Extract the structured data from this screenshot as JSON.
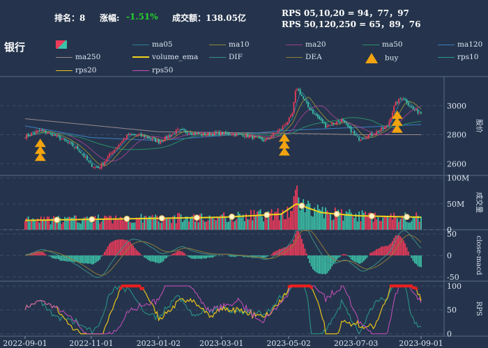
{
  "header": {
    "rank_label": "排名：8",
    "change_label": "涨幅:",
    "change_value": "-1.51%",
    "turnover_label": "成交额：138.05亿",
    "rps_line1": "RPS 05,10,20 = 94，77，97",
    "rps_line2": "RPS 50,120,250 = 65，89，76"
  },
  "title": "银行",
  "colors": {
    "background": "#25344c",
    "up": "#ef3b5a",
    "down": "#3cc3a8",
    "negative_change": "#25d12b",
    "volume_ema": "#f2d31c",
    "buy_marker": "#f2a30f"
  },
  "legend": [
    {
      "label": "",
      "color": "#ef3b5a",
      "kind": "candle-icon"
    },
    {
      "label": "ma05",
      "color": "#2f7f9b"
    },
    {
      "label": "ma10",
      "color": "#8e8a3a"
    },
    {
      "label": "ma20",
      "color": "#9b3f8f"
    },
    {
      "label": "ma50",
      "color": "#2c8f6b"
    },
    {
      "label": "ma120",
      "color": "#3c7fc2"
    },
    {
      "label": "ma250",
      "color": "#9a8a8f"
    },
    {
      "label": "volume_ema",
      "color": "#f2d31c"
    },
    {
      "label": "DIF",
      "color": "#3a8f86"
    },
    {
      "label": "DEA",
      "color": "#8e7a3a"
    },
    {
      "label": "buy",
      "color": "#f2a30f",
      "kind": "triangle-icon"
    },
    {
      "label": "rps10",
      "color": "#2a9a8a"
    },
    {
      "label": "rps20",
      "color": "#e9c21a"
    },
    {
      "label": "rps50",
      "color": "#cc4fc0"
    }
  ],
  "chart_data": {
    "type": "candlestick",
    "x_dates": [
      "2022-09-01",
      "2022-11-01",
      "2023-01-02",
      "2023-03-01",
      "2023-05-02",
      "2023-07-03",
      "2023-09-01"
    ],
    "x_tick_labels": [
      "2022-09-01",
      "2022-11-01",
      "2023-01-02",
      "2023-03-01",
      "2023-05-02",
      "2023-07-03",
      "2023-09-01"
    ],
    "price": {
      "ylabel": "股价",
      "ticks": [
        2600,
        2800,
        3000
      ],
      "ylim": [
        2520,
        3200
      ],
      "close_keypoints": [
        [
          "2022-09-01",
          2790
        ],
        [
          "2022-09-15",
          2830
        ],
        [
          "2022-09-30",
          2790
        ],
        [
          "2022-10-20",
          2700
        ],
        [
          "2022-11-01",
          2590
        ],
        [
          "2022-11-08",
          2570
        ],
        [
          "2022-11-20",
          2680
        ],
        [
          "2022-12-05",
          2800
        ],
        [
          "2022-12-20",
          2790
        ],
        [
          "2023-01-02",
          2750
        ],
        [
          "2023-01-20",
          2830
        ],
        [
          "2023-02-10",
          2800
        ],
        [
          "2023-03-01",
          2810
        ],
        [
          "2023-03-20",
          2800
        ],
        [
          "2023-04-10",
          2760
        ],
        [
          "2023-04-25",
          2840
        ],
        [
          "2023-05-05",
          2930
        ],
        [
          "2023-05-09",
          3130
        ],
        [
          "2023-05-20",
          2990
        ],
        [
          "2023-06-05",
          2860
        ],
        [
          "2023-06-20",
          2900
        ],
        [
          "2023-07-05",
          2770
        ],
        [
          "2023-07-20",
          2810
        ],
        [
          "2023-08-01",
          2860
        ],
        [
          "2023-08-08",
          3010
        ],
        [
          "2023-08-15",
          3060
        ],
        [
          "2023-08-25",
          2970
        ],
        [
          "2023-09-01",
          2950
        ]
      ],
      "ma250_keypoints": [
        [
          "2022-09-01",
          2910
        ],
        [
          "2023-01-02",
          2820
        ],
        [
          "2023-05-02",
          2810
        ],
        [
          "2023-07-03",
          2800
        ],
        [
          "2023-09-01",
          2800
        ]
      ],
      "ma120_keypoints": [
        [
          "2022-09-01",
          2860
        ],
        [
          "2022-11-01",
          2780
        ],
        [
          "2023-01-02",
          2760
        ],
        [
          "2023-05-02",
          2830
        ],
        [
          "2023-07-03",
          2850
        ],
        [
          "2023-09-01",
          2870
        ]
      ],
      "buy_signals": [
        {
          "date": "2022-09-15",
          "count": 3
        },
        {
          "date": "2023-04-28",
          "count": 3
        },
        {
          "date": "2023-08-10",
          "count": 3
        }
      ]
    },
    "volume": {
      "ylabel": "成交量",
      "tick_labels": [
        "0",
        "50M",
        "100M"
      ],
      "ticks": [
        0,
        50,
        100
      ],
      "ylim": [
        0,
        105
      ],
      "unit": "M",
      "ema_keypoints": [
        [
          "2022-09-01",
          18
        ],
        [
          "2022-11-01",
          20
        ],
        [
          "2023-01-02",
          22
        ],
        [
          "2023-03-01",
          24
        ],
        [
          "2023-04-25",
          30
        ],
        [
          "2023-05-09",
          50
        ],
        [
          "2023-06-01",
          33
        ],
        [
          "2023-07-03",
          27
        ],
        [
          "2023-09-01",
          24
        ]
      ],
      "peak": [
        "2023-05-09",
        102
      ]
    },
    "macd": {
      "ylabel": "close-macd",
      "ticks": [
        -50,
        0,
        50
      ],
      "ylim": [
        -60,
        60
      ]
    },
    "rps": {
      "ylabel": "RPS",
      "ticks": [
        0,
        50,
        100
      ],
      "ylim": [
        -5,
        110
      ]
    }
  }
}
